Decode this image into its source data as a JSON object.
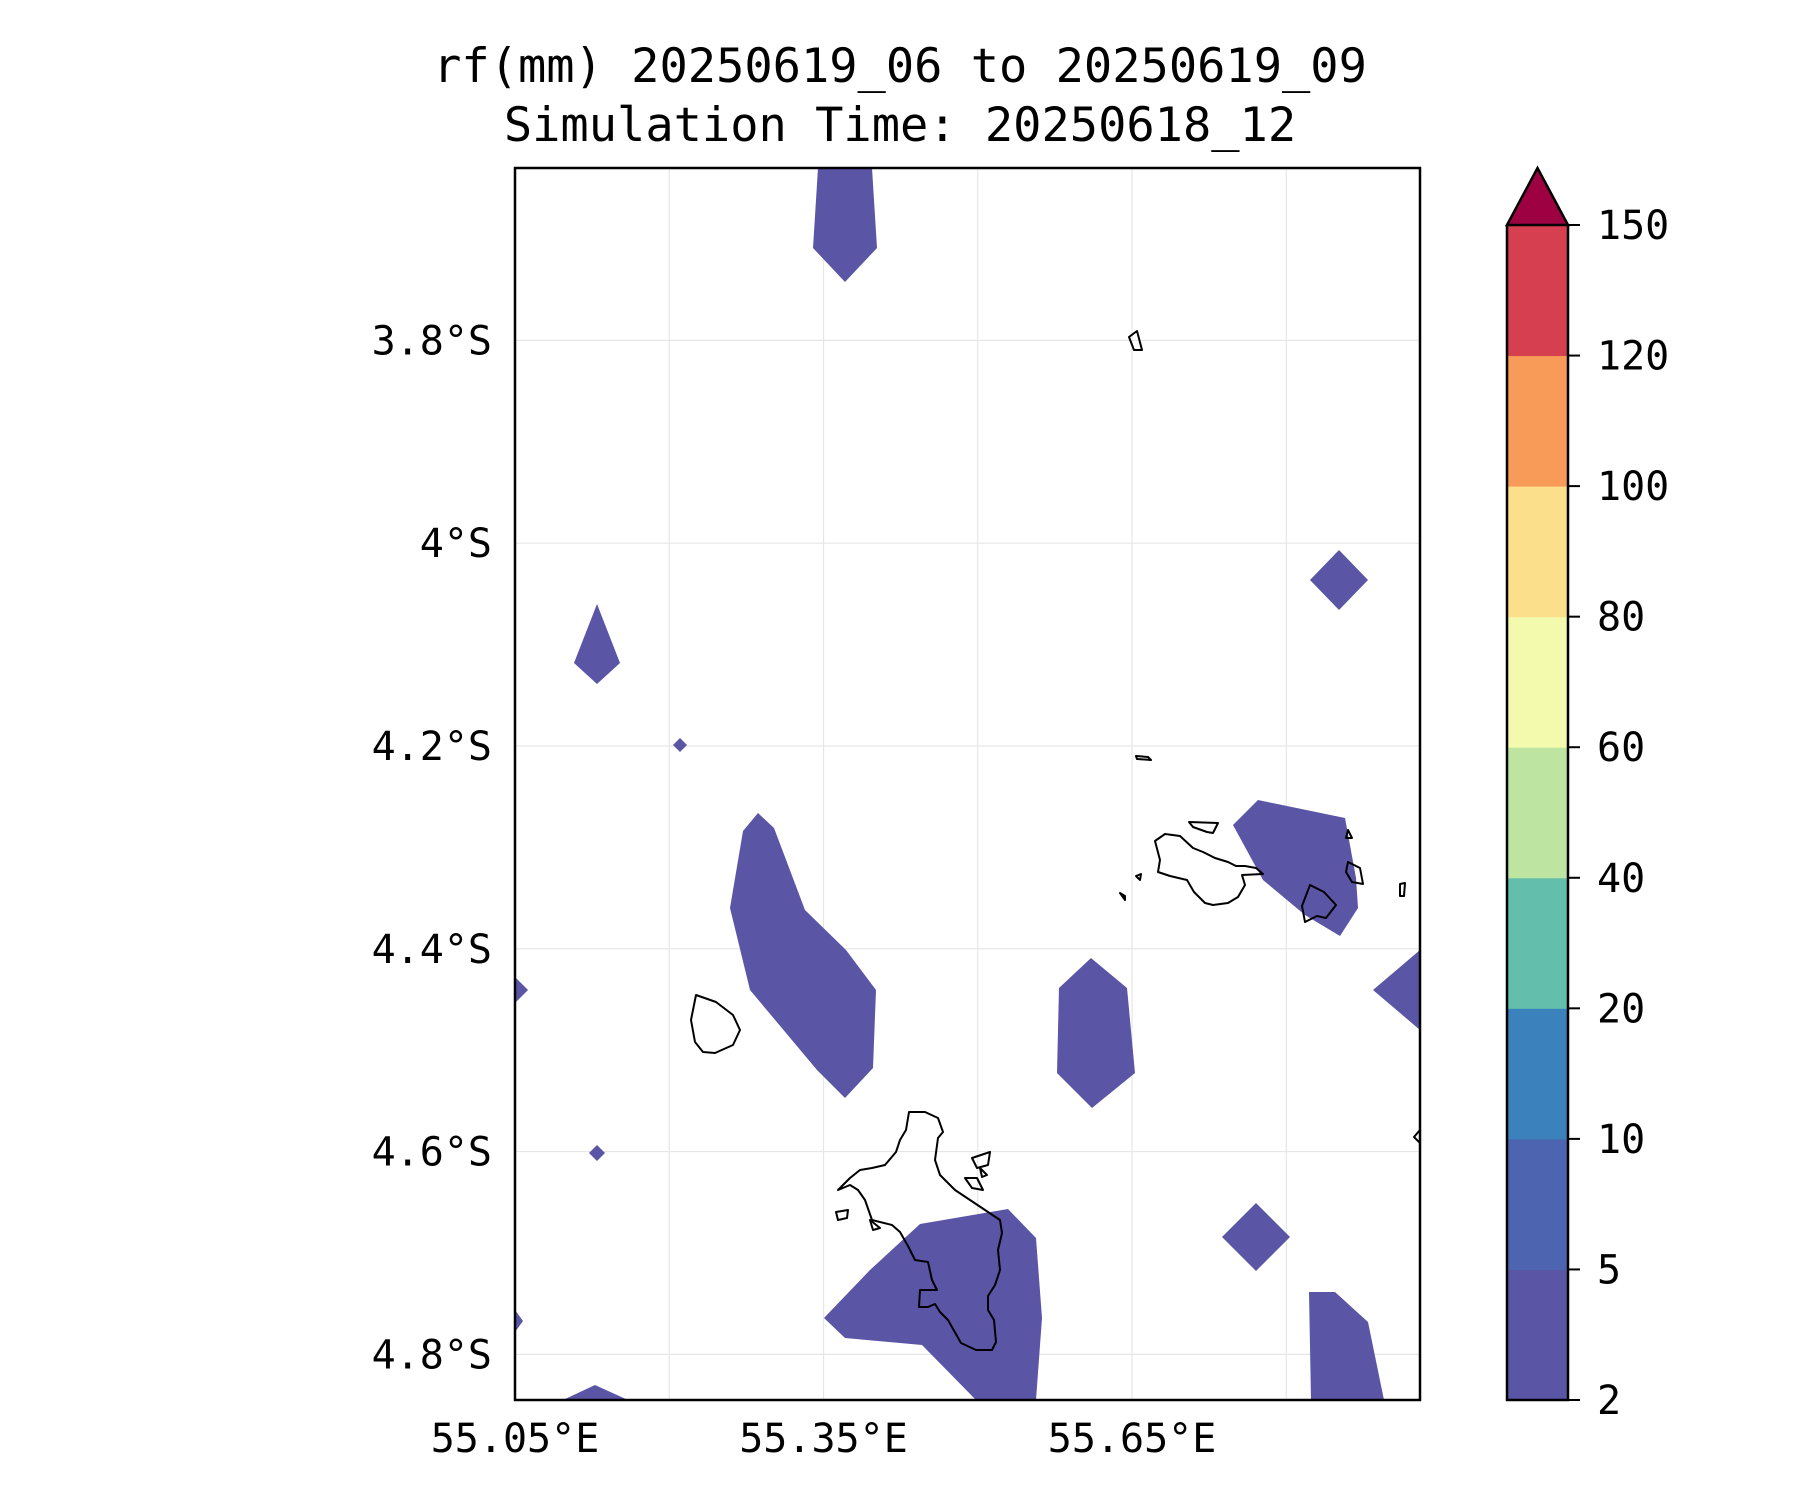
{
  "title": {
    "line1": "rf(mm) 20250619_06 to 20250619_09",
    "line2": "Simulation Time: 20250618_12"
  },
  "map": {
    "lon_range": [
      55.05,
      55.93
    ],
    "lat_range": [
      -4.845,
      -3.63
    ],
    "lat_ticks": [
      {
        "value": -3.8,
        "label": "3.8°S"
      },
      {
        "value": -4.0,
        "label": "4°S"
      },
      {
        "value": -4.2,
        "label": "4.2°S"
      },
      {
        "value": -4.4,
        "label": "4.4°S"
      },
      {
        "value": -4.6,
        "label": "4.6°S"
      },
      {
        "value": -4.8,
        "label": "4.8°S"
      }
    ],
    "lon_ticks": [
      {
        "value": 55.05,
        "label": "55.05°E"
      },
      {
        "value": 55.35,
        "label": "55.35°E"
      },
      {
        "value": 55.65,
        "label": "55.65°E"
      }
    ],
    "grid_lons": [
      55.2,
      55.35,
      55.5,
      55.65,
      55.8
    ],
    "grid": true,
    "fill_color": "#5b55a6",
    "coastline_color": "#000000"
  },
  "colorbar": {
    "levels": [
      "2",
      "5",
      "10",
      "20",
      "40",
      "60",
      "80",
      "100",
      "120",
      "150"
    ],
    "colors": [
      "#5b55a6",
      "#4d65b0",
      "#3b81bc",
      "#63bfab",
      "#bde5a1",
      "#f3f9ad",
      "#fcdf8a",
      "#f89b58",
      "#d63f4f"
    ],
    "extend_color": "#9e0142",
    "extend": "max"
  }
}
